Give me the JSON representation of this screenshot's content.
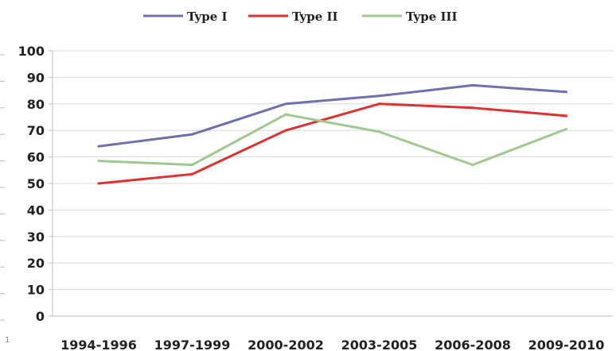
{
  "chart_data": {
    "type": "line",
    "title": "",
    "xlabel": "",
    "ylabel": "",
    "categories": [
      "1994-1996",
      "1997-1999",
      "2000-2002",
      "2003-2005",
      "2006-2008",
      "2009-2010"
    ],
    "ylim": [
      0,
      100
    ],
    "yticks": [
      0,
      10,
      20,
      30,
      40,
      50,
      60,
      70,
      80,
      90,
      100
    ],
    "grid": true,
    "legend_position": "top",
    "series": [
      {
        "name": "Type I",
        "color": "#7070b0",
        "values": [
          64,
          68.5,
          80,
          83,
          87,
          84.5
        ]
      },
      {
        "name": "Type II",
        "color": "#e03030",
        "values": [
          50,
          53.5,
          70,
          80,
          78.5,
          75.5
        ]
      },
      {
        "name": "Type III",
        "color": "#a0c890",
        "values": [
          58.5,
          57,
          76,
          69.5,
          57,
          70.5
        ]
      }
    ],
    "edge_note": "1"
  }
}
